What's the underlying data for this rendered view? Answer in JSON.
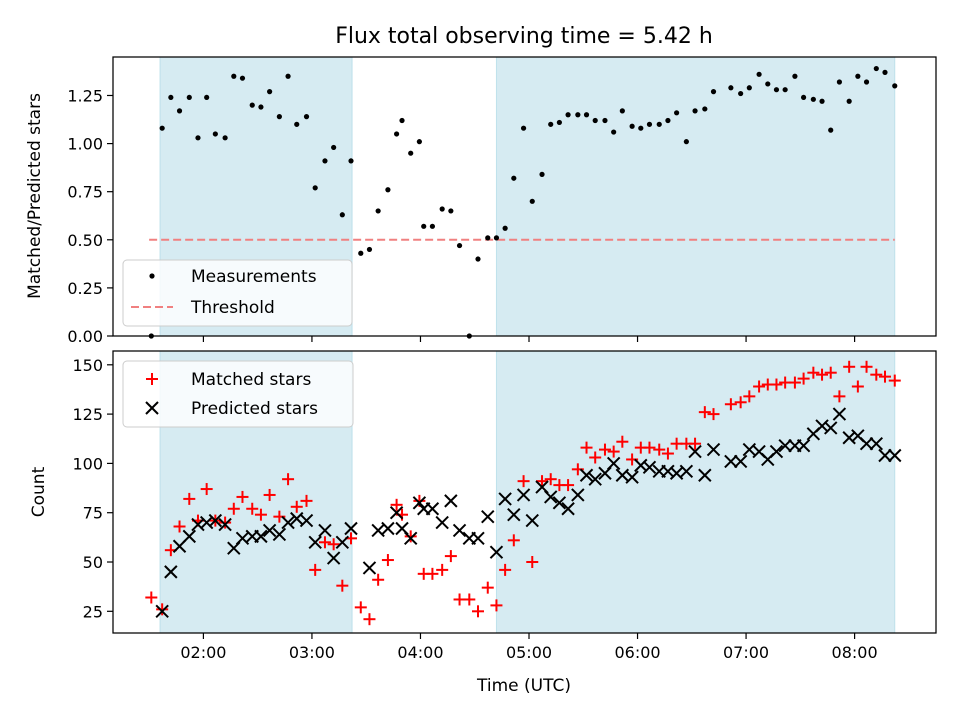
{
  "chart_data": [
    {
      "type": "scatter",
      "title": "Flux total observing time = 5.42 h",
      "ylabel": "Matched/Predicted stars",
      "xlabel": "",
      "xlim": [
        1.167,
        8.75
      ],
      "ylim": [
        0,
        1.45
      ],
      "yticks": [
        0.0,
        0.25,
        0.5,
        0.75,
        1.0,
        1.25
      ],
      "ytick_labels": [
        "0.00",
        "0.25",
        "0.50",
        "0.75",
        "1.00",
        "1.25"
      ],
      "shaded_intervals": [
        [
          1.6,
          3.37
        ],
        [
          4.7,
          8.37
        ]
      ],
      "threshold": {
        "name": "Threshold",
        "y": 0.5,
        "x_range": [
          1.5,
          8.37
        ],
        "color": "#f08080"
      },
      "legend": {
        "placement": "lower-left",
        "entries": [
          "Measurements",
          "Threshold"
        ]
      },
      "series": [
        {
          "name": "Measurements",
          "marker": "dot",
          "color": "#000000",
          "x": [
            1.52,
            1.62,
            1.7,
            1.78,
            1.87,
            1.95,
            2.03,
            2.11,
            2.2,
            2.28,
            2.36,
            2.45,
            2.53,
            2.61,
            2.7,
            2.78,
            2.86,
            2.95,
            3.03,
            3.12,
            3.2,
            3.28,
            3.36,
            3.45,
            3.53,
            3.61,
            3.7,
            3.78,
            3.83,
            3.91,
            3.99,
            4.03,
            4.11,
            4.2,
            4.28,
            4.36,
            4.45,
            4.53,
            4.62,
            4.7,
            4.78,
            4.86,
            4.95,
            5.03,
            5.12,
            5.2,
            5.28,
            5.36,
            5.45,
            5.53,
            5.61,
            5.7,
            5.78,
            5.86,
            5.95,
            6.03,
            6.11,
            6.2,
            6.28,
            6.36,
            6.45,
            6.53,
            6.62,
            6.7,
            6.86,
            6.95,
            7.03,
            7.12,
            7.2,
            7.28,
            7.36,
            7.45,
            7.53,
            7.62,
            7.7,
            7.78,
            7.86,
            7.95,
            8.03,
            8.11,
            8.2,
            8.28,
            8.37
          ],
          "y": [
            0.0,
            1.08,
            1.24,
            1.17,
            1.24,
            1.03,
            1.24,
            1.05,
            1.03,
            1.35,
            1.34,
            1.2,
            1.19,
            1.27,
            1.14,
            1.35,
            1.1,
            1.14,
            0.77,
            0.91,
            0.98,
            0.63,
            0.91,
            0.43,
            0.45,
            0.65,
            0.76,
            1.05,
            1.12,
            0.95,
            1.01,
            0.57,
            0.57,
            0.66,
            0.65,
            0.47,
            0.0,
            0.4,
            0.51,
            0.51,
            0.56,
            0.82,
            1.08,
            0.7,
            0.84,
            1.1,
            1.11,
            1.15,
            1.15,
            1.15,
            1.12,
            1.12,
            1.06,
            1.17,
            1.09,
            1.08,
            1.1,
            1.1,
            1.12,
            1.16,
            1.01,
            1.17,
            1.18,
            1.27,
            1.29,
            1.26,
            1.29,
            1.36,
            1.31,
            1.28,
            1.28,
            1.35,
            1.24,
            1.23,
            1.22,
            1.07,
            1.32,
            1.22,
            1.35,
            1.32,
            1.39,
            1.37,
            1.3
          ]
        }
      ]
    },
    {
      "type": "scatter",
      "title": "",
      "ylabel": "Count",
      "xlabel": "Time (UTC)",
      "xlim": [
        1.167,
        8.75
      ],
      "ylim": [
        14,
        157
      ],
      "yticks": [
        25,
        50,
        75,
        100,
        125,
        150
      ],
      "ytick_labels": [
        "25",
        "50",
        "75",
        "100",
        "125",
        "150"
      ],
      "xticks": [
        2,
        3,
        4,
        5,
        6,
        7,
        8
      ],
      "xtick_labels": [
        "02:00",
        "03:00",
        "04:00",
        "05:00",
        "06:00",
        "07:00",
        "08:00"
      ],
      "shaded_intervals": [
        [
          1.6,
          3.37
        ],
        [
          4.7,
          8.37
        ]
      ],
      "legend": {
        "placement": "top-left",
        "entries": [
          "Matched stars",
          "Predicted stars"
        ]
      },
      "series": [
        {
          "name": "Matched stars",
          "marker": "plus",
          "color": "#ff0000",
          "x": [
            1.52,
            1.62,
            1.7,
            1.78,
            1.87,
            1.95,
            2.03,
            2.11,
            2.2,
            2.28,
            2.36,
            2.45,
            2.53,
            2.61,
            2.7,
            2.78,
            2.86,
            2.95,
            3.03,
            3.12,
            3.2,
            3.28,
            3.36,
            3.45,
            3.53,
            3.61,
            3.7,
            3.78,
            3.83,
            3.91,
            3.99,
            4.03,
            4.11,
            4.2,
            4.28,
            4.36,
            4.45,
            4.53,
            4.62,
            4.7,
            4.78,
            4.86,
            4.95,
            5.03,
            5.12,
            5.2,
            5.28,
            5.36,
            5.45,
            5.53,
            5.61,
            5.7,
            5.78,
            5.86,
            5.95,
            6.03,
            6.11,
            6.2,
            6.28,
            6.36,
            6.45,
            6.53,
            6.62,
            6.7,
            6.86,
            6.95,
            7.03,
            7.12,
            7.2,
            7.28,
            7.36,
            7.45,
            7.53,
            7.62,
            7.7,
            7.78,
            7.86,
            7.95,
            8.03,
            8.11,
            8.2,
            8.28,
            8.37
          ],
          "y": [
            32,
            26,
            56,
            68,
            82,
            71,
            87,
            71,
            70,
            77,
            83,
            77,
            74,
            84,
            73,
            92,
            78,
            81,
            46,
            60,
            59,
            38,
            62,
            27,
            21,
            41,
            51,
            79,
            74,
            63,
            81,
            44,
            44,
            46,
            53,
            31,
            31,
            25,
            37,
            28,
            46,
            61,
            91,
            50,
            91,
            92,
            89,
            89,
            97,
            108,
            103,
            107,
            106,
            111,
            102,
            108,
            108,
            107,
            105,
            110,
            110,
            110,
            126,
            125,
            130,
            131,
            134,
            139,
            140,
            140,
            141,
            141,
            143,
            146,
            145,
            146,
            134,
            149,
            139,
            149,
            145,
            144,
            142
          ]
        },
        {
          "name": "Predicted stars",
          "marker": "x",
          "color": "#000000",
          "x": [
            1.62,
            1.7,
            1.78,
            1.87,
            1.95,
            2.03,
            2.11,
            2.2,
            2.28,
            2.36,
            2.45,
            2.53,
            2.61,
            2.7,
            2.78,
            2.86,
            2.95,
            3.03,
            3.12,
            3.2,
            3.28,
            3.36,
            3.53,
            3.61,
            3.7,
            3.78,
            3.83,
            3.91,
            3.99,
            4.03,
            4.11,
            4.2,
            4.28,
            4.36,
            4.45,
            4.53,
            4.62,
            4.7,
            4.78,
            4.86,
            4.95,
            5.03,
            5.12,
            5.2,
            5.28,
            5.36,
            5.45,
            5.53,
            5.61,
            5.7,
            5.78,
            5.86,
            5.95,
            6.03,
            6.11,
            6.2,
            6.28,
            6.36,
            6.45,
            6.53,
            6.62,
            6.7,
            6.86,
            6.95,
            7.03,
            7.12,
            7.2,
            7.28,
            7.36,
            7.45,
            7.53,
            7.62,
            7.7,
            7.78,
            7.86,
            7.95,
            8.03,
            8.11,
            8.2,
            8.28,
            8.37
          ],
          "y": [
            25,
            45,
            58,
            63,
            69,
            70,
            71,
            69,
            57,
            62,
            63,
            63,
            66,
            64,
            70,
            72,
            71,
            60,
            66,
            52,
            60,
            67,
            47,
            66,
            67,
            75,
            67,
            62,
            80,
            77,
            77,
            70,
            81,
            66,
            62,
            62,
            73,
            55,
            82,
            74,
            84,
            71,
            88,
            83,
            80,
            77,
            84,
            94,
            92,
            95,
            100,
            94,
            93,
            99,
            98,
            96,
            96,
            95,
            96,
            106,
            94,
            107,
            101,
            101,
            107,
            106,
            102,
            106,
            109,
            109,
            109,
            115,
            119,
            118,
            125,
            113,
            114,
            110,
            110,
            104,
            104
          ]
        }
      ]
    }
  ]
}
